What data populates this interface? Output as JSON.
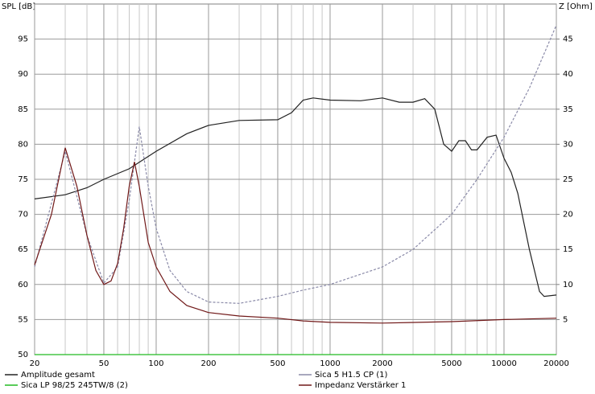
{
  "chart_data": {
    "type": "line",
    "y_label": "SPL [dB]",
    "y2_label": "Z [Ohm]",
    "xlog": true,
    "grid": true,
    "xlim": [
      20,
      20000
    ],
    "xticks": [
      20,
      50,
      100,
      200,
      500,
      1000,
      2000,
      5000,
      10000,
      20000
    ],
    "ylim": [
      50,
      100
    ],
    "yticks": [
      50,
      55,
      60,
      65,
      70,
      75,
      80,
      85,
      90,
      95
    ],
    "y2lim": [
      0,
      50
    ],
    "y2ticks": [
      5,
      10,
      15,
      20,
      25,
      30,
      35,
      40,
      45
    ],
    "series": [
      {
        "name": "Amplitude gesamt",
        "color": "#222222",
        "x": [
          20,
          30,
          40,
          50,
          70,
          100,
          150,
          200,
          300,
          500,
          600,
          700,
          800,
          1000,
          1500,
          2000,
          2500,
          3000,
          3500,
          4000,
          4500,
          5000,
          5500,
          6000,
          6500,
          7000,
          8000,
          9000,
          10000,
          11000,
          12000,
          14000,
          16000,
          17000,
          20000
        ],
        "values": [
          72.2,
          72.8,
          73.8,
          75,
          76.5,
          79,
          81.5,
          82.7,
          83.4,
          83.5,
          84.5,
          86.3,
          86.6,
          86.3,
          86.2,
          86.6,
          86,
          86,
          86.5,
          85,
          80,
          79,
          80.5,
          80.5,
          79.2,
          79.2,
          81,
          81.3,
          78,
          76,
          73,
          65,
          59,
          58.3,
          58.5
        ]
      },
      {
        "name": "Sica 5 H1.5 CP (1)",
        "color": "#8a8aa8",
        "axis": "y2",
        "dashed": true,
        "x": [
          20,
          30,
          40,
          50,
          60,
          70,
          80,
          90,
          100,
          120,
          150,
          200,
          300,
          500,
          700,
          1000,
          2000,
          3000,
          5000,
          7000,
          10000,
          14000,
          20000
        ],
        "values": [
          12.5,
          29,
          17,
          10.2,
          12.5,
          22,
          32.5,
          24,
          18,
          12,
          9,
          7.5,
          7.3,
          8.3,
          9.2,
          10,
          12.5,
          15,
          20,
          25,
          31,
          38,
          47
        ]
      },
      {
        "name": "Sica LP 98/25 245TW/8 (2)",
        "color": "#22bb22",
        "axis": "y2",
        "x": [
          20,
          20000
        ],
        "values": [
          0,
          0
        ]
      },
      {
        "name": "Impedanz Verstärker 1",
        "color": "#701818",
        "axis": "y2",
        "x": [
          20,
          25,
          30,
          35,
          40,
          45,
          50,
          55,
          60,
          65,
          70,
          75,
          80,
          90,
          100,
          120,
          150,
          200,
          300,
          500,
          700,
          1000,
          2000,
          5000,
          10000,
          20000
        ],
        "values": [
          12.8,
          20,
          29.5,
          24,
          17,
          12,
          10,
          10.5,
          13,
          18,
          24,
          27.5,
          24,
          16,
          12.5,
          9,
          7,
          6,
          5.5,
          5.2,
          4.8,
          4.6,
          4.5,
          4.7,
          5,
          5.2
        ]
      }
    ]
  }
}
